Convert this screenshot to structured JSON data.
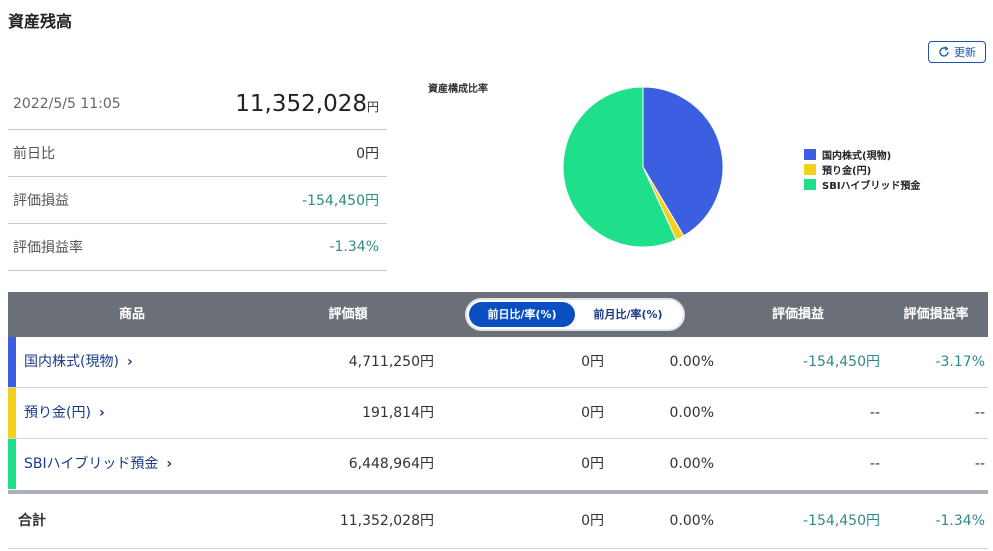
{
  "page": {
    "title": "資産残高"
  },
  "refresh": {
    "label": "更新"
  },
  "summary": {
    "datetime": "2022/5/5 11:05",
    "total": "11,352,028",
    "yen": "円",
    "rows": [
      {
        "label": "前日比",
        "value": "0円"
      },
      {
        "label": "評価損益",
        "value": "-154,450円"
      },
      {
        "label": "評価損益率",
        "value": "-1.34%"
      }
    ]
  },
  "chart_data": {
    "type": "pie",
    "title": "資産構成比率",
    "legend_position": "right",
    "series": [
      {
        "name": "国内株式(現物)",
        "value": 4711250,
        "color": "#3b5fe0"
      },
      {
        "name": "預り金(円)",
        "value": 191814,
        "color": "#f4d21a"
      },
      {
        "name": "SBIハイブリッド預金",
        "value": 6448964,
        "color": "#1fe08a"
      }
    ]
  },
  "table": {
    "headers": {
      "product": "商品",
      "valuation": "評価額",
      "toggle_day": "前日比/率(%)",
      "toggle_month": "前月比/率(%)",
      "pl": "評価損益",
      "pl_rate": "評価損益率"
    },
    "rows": [
      {
        "name": "国内株式(現物)",
        "valuation": "4,711,250円",
        "change": "0円",
        "change_rate": "0.00%",
        "pl": "-154,450円",
        "pl_rate": "-3.17%",
        "color": "#3b5fe0"
      },
      {
        "name": "預り金(円)",
        "valuation": "191,814円",
        "change": "0円",
        "change_rate": "0.00%",
        "pl": "--",
        "pl_rate": "--",
        "color": "#f4d21a"
      },
      {
        "name": "SBIハイブリッド預金",
        "valuation": "6,448,964円",
        "change": "0円",
        "change_rate": "0.00%",
        "pl": "--",
        "pl_rate": "--",
        "color": "#1fe08a"
      }
    ],
    "total": {
      "label": "合計",
      "valuation": "11,352,028円",
      "change": "0円",
      "change_rate": "0.00%",
      "pl": "-154,450円",
      "pl_rate": "-1.34%"
    }
  },
  "icons": {
    "refresh": "refresh-icon",
    "chevron": "chevron-right-icon"
  },
  "chevron_glyph": "›"
}
